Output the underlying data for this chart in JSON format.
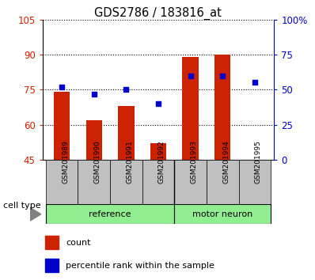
{
  "title": "GDS2786 / 183816_at",
  "samples": [
    "GSM201989",
    "GSM201990",
    "GSM201991",
    "GSM201992",
    "GSM201993",
    "GSM201994",
    "GSM201995"
  ],
  "count_values": [
    74,
    62,
    68,
    52,
    89,
    90,
    45
  ],
  "percentile_values": [
    52,
    47,
    50,
    40,
    60,
    60,
    55
  ],
  "ylim_left": [
    45,
    105
  ],
  "ylim_right": [
    0,
    100
  ],
  "yticks_left": [
    45,
    60,
    75,
    90,
    105
  ],
  "yticks_right": [
    0,
    25,
    50,
    75,
    100
  ],
  "ytick_labels_right": [
    "0",
    "25",
    "50",
    "75",
    "100%"
  ],
  "bar_color": "#CC2200",
  "dot_color": "#0000CC",
  "bar_width": 0.5,
  "legend_items": [
    "count",
    "percentile rank within the sample"
  ],
  "left_color": "#CC2200",
  "right_color": "#0000CC",
  "ref_count": 4,
  "motor_count": 3,
  "green_color": "#90EE90",
  "gray_color": "#C0C0C0"
}
